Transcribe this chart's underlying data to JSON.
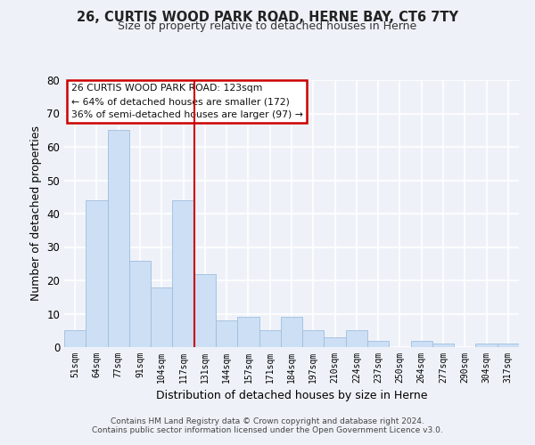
{
  "title": "26, CURTIS WOOD PARK ROAD, HERNE BAY, CT6 7TY",
  "subtitle": "Size of property relative to detached houses in Herne",
  "xlabel": "Distribution of detached houses by size in Herne",
  "ylabel": "Number of detached properties",
  "bar_color": "#ccdff5",
  "bar_edge_color": "#a0bedd",
  "categories": [
    "51sqm",
    "64sqm",
    "77sqm",
    "91sqm",
    "104sqm",
    "117sqm",
    "131sqm",
    "144sqm",
    "157sqm",
    "171sqm",
    "184sqm",
    "197sqm",
    "210sqm",
    "224sqm",
    "237sqm",
    "250sqm",
    "264sqm",
    "277sqm",
    "290sqm",
    "304sqm",
    "317sqm"
  ],
  "values": [
    5,
    44,
    65,
    26,
    18,
    44,
    22,
    8,
    9,
    5,
    9,
    5,
    3,
    5,
    2,
    0,
    2,
    1,
    0,
    1,
    1
  ],
  "ylim": [
    0,
    80
  ],
  "yticks": [
    0,
    10,
    20,
    30,
    40,
    50,
    60,
    70,
    80
  ],
  "vline_color": "#cc0000",
  "annotation_title": "26 CURTIS WOOD PARK ROAD: 123sqm",
  "annotation_line1": "← 64% of detached houses are smaller (172)",
  "annotation_line2": "36% of semi-detached houses are larger (97) →",
  "annotation_box_color": "#ffffff",
  "annotation_box_edge": "#cc0000",
  "bg_color": "#eef2f8",
  "grid_color": "#ffffff",
  "footer1": "Contains HM Land Registry data © Crown copyright and database right 2024.",
  "footer2": "Contains public sector information licensed under the Open Government Licence v3.0."
}
